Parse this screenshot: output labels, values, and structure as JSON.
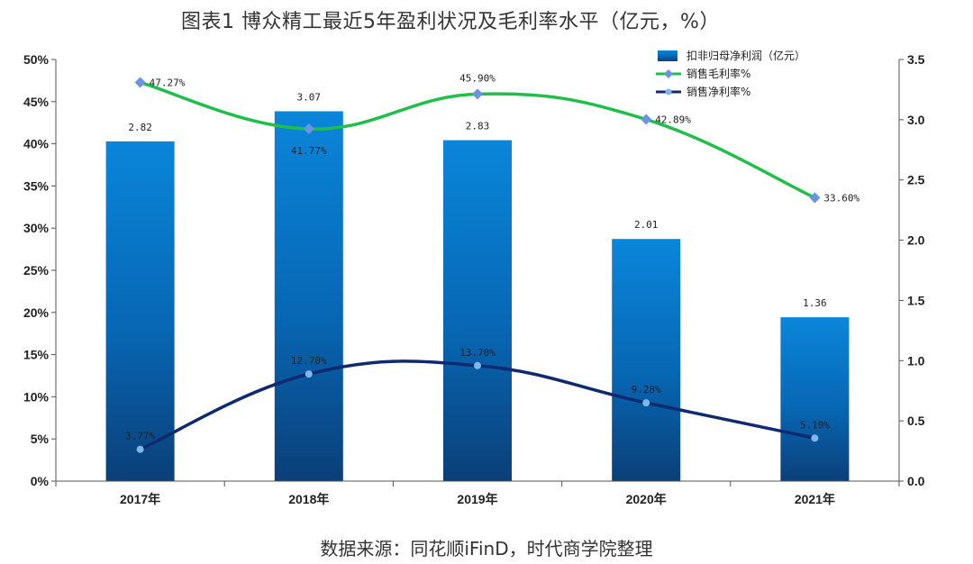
{
  "title": "图表1  博众精工最近5年盈利状况及毛利率水平（亿元，%）",
  "source": "数据来源：同花顺iFinD，时代商学院整理",
  "chart_data": {
    "type": "bar",
    "categories": [
      "2017年",
      "2018年",
      "2019年",
      "2020年",
      "2021年"
    ],
    "left_axis": {
      "min": 0,
      "max": 50,
      "step": 5,
      "suffix": "%"
    },
    "right_axis": {
      "min": 0,
      "max": 3.5,
      "step": 0.5
    },
    "grid": false,
    "legend_position": "top-right",
    "series": [
      {
        "name": "扣非归母净利润（亿元）",
        "kind": "bar",
        "axis": "right",
        "values": [
          2.82,
          3.07,
          2.83,
          2.01,
          1.36
        ],
        "labels": [
          "2.82",
          "3.07",
          "2.83",
          "2.01",
          "1.36"
        ],
        "color": "#0a7fd0"
      },
      {
        "name": "销售毛利率%",
        "kind": "line",
        "axis": "left",
        "values": [
          47.27,
          41.77,
          45.9,
          42.89,
          33.6
        ],
        "labels": [
          "47.27%",
          "41.77%",
          "45.90%",
          "42.89%",
          "33.60%"
        ],
        "color": "#1fbf4a",
        "marker": "diamond"
      },
      {
        "name": "销售净利率%",
        "kind": "line",
        "axis": "left",
        "values": [
          3.77,
          12.7,
          13.7,
          9.28,
          5.1
        ],
        "labels": [
          "3.77%",
          "12.70%",
          "13.70%",
          "9.28%",
          "5.10%"
        ],
        "color": "#0f2a6e",
        "marker": "circle"
      }
    ]
  }
}
